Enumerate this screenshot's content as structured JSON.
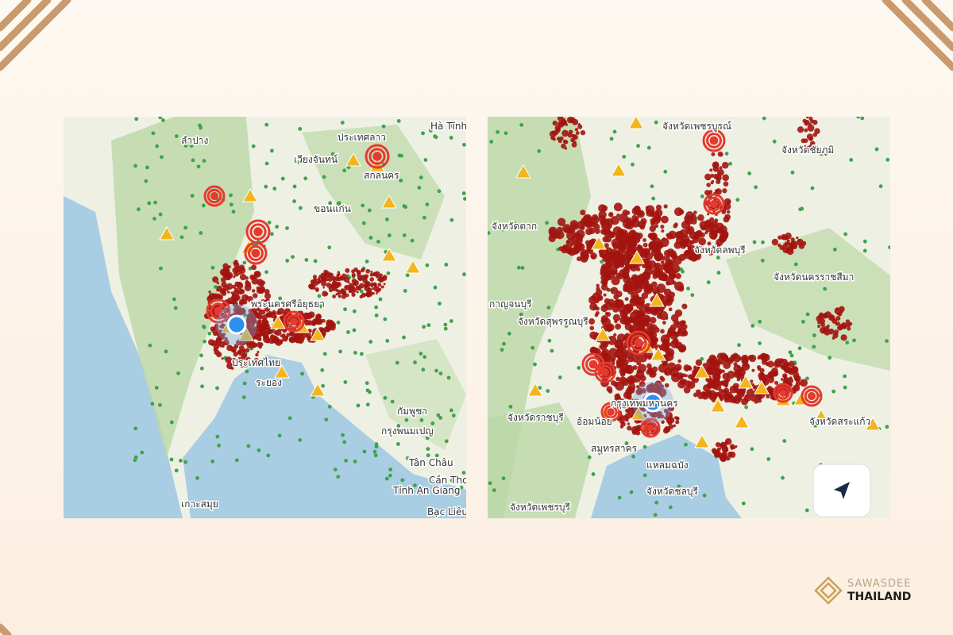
{
  "maps": [
    {
      "labels": [
        "ลำปาง",
        "ประเทศลาว",
        "เวียงจันทน์",
        "สกลนคร",
        "ขอนแก่น",
        "พระนครศรีอยุธยา",
        "ประเทศไทย",
        "ระยอง",
        "กรุงพนมเปญ",
        "กัมพูชา",
        "เกาะสมุย",
        "Hà Tĩnh",
        "Tân Châu",
        "Cần Thơ",
        "Tỉnh An Giang",
        "Bạc Liêu"
      ]
    },
    {
      "labels": [
        "จังหวัดเพชรบูรณ์",
        "จังหวัดชัยภูมิ",
        "จังหวัดตาก",
        "จังหวัดลพบุรี",
        "จังหวัดนครราชสีมา",
        "กาญจนบุรี",
        "จังหวัดสุพรรณบุรี",
        "กรุงเทพมหานคร",
        "อ้อมน้อย",
        "จังหวัดราชบุรี",
        "สมุทรสาคร",
        "แหลมฉบัง",
        "จังหวัดเพชรบุรี",
        "จังหวัดชลบุรี",
        "จังหวัดสระแก้ว"
      ]
    }
  ],
  "brand": {
    "line1": "SAWASDEE",
    "line2": "THAILAND"
  }
}
